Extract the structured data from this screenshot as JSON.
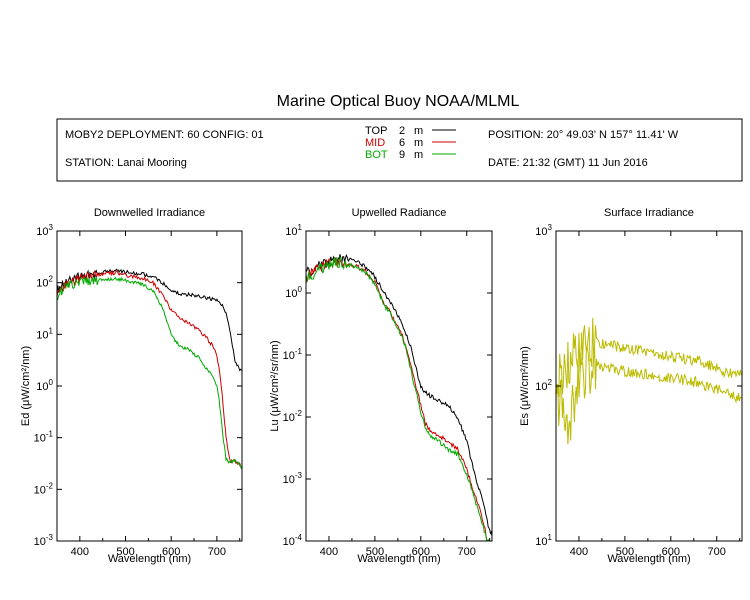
{
  "title": "Marine Optical Buoy NOAA/MLML",
  "info": {
    "deployment": "MOBY2 DEPLOYMENT: 60 CONFIG: 01",
    "station": "STATION: Lanai Mooring",
    "position": "POSITION: 20° 49.03' N   157° 11.41' W",
    "date": "DATE: 21:32 (GMT) 11 Jun 2016"
  },
  "legend": [
    {
      "name": "TOP",
      "depth": "2",
      "unit": "m",
      "color": "#000000"
    },
    {
      "name": "MID",
      "depth": "6",
      "unit": "m",
      "color": "#cc0000"
    },
    {
      "name": "BOT",
      "depth": "9",
      "unit": "m",
      "color": "#00aa00"
    }
  ],
  "chart_data": [
    {
      "type": "line",
      "title": "Downwelled Irradiance",
      "ylabel": "Ed  (μW/cm²/nm)",
      "xlabel": "Wavelength (nm)",
      "xlim": [
        350,
        755
      ],
      "ylim": [
        0.001,
        1000
      ],
      "yscale": "log",
      "xticks": [
        "400",
        "500",
        "600",
        "700"
      ],
      "yticks": [
        {
          "base": "10",
          "exp": "-3"
        },
        {
          "base": "10",
          "exp": "-2"
        },
        {
          "base": "10",
          "exp": "-1"
        },
        {
          "base": "10",
          "exp": "0"
        },
        {
          "base": "10",
          "exp": "1"
        },
        {
          "base": "10",
          "exp": "2"
        },
        {
          "base": "10",
          "exp": "3"
        }
      ],
      "series": [
        {
          "name": "TOP",
          "color": "#000000",
          "x": [
            350,
            360,
            380,
            400,
            420,
            440,
            460,
            480,
            500,
            520,
            540,
            560,
            580,
            600,
            620,
            640,
            660,
            680,
            700,
            710,
            720,
            730,
            740,
            750,
            755
          ],
          "y": [
            70,
            90,
            110,
            130,
            140,
            150,
            165,
            170,
            160,
            150,
            145,
            130,
            100,
            70,
            60,
            58,
            55,
            50,
            45,
            38,
            25,
            10,
            3,
            2,
            2
          ]
        },
        {
          "name": "MID",
          "color": "#cc0000",
          "x": [
            350,
            360,
            380,
            400,
            420,
            440,
            460,
            480,
            500,
            520,
            540,
            560,
            580,
            600,
            620,
            640,
            660,
            680,
            690,
            700,
            710,
            715,
            720,
            725,
            730,
            740,
            750,
            755
          ],
          "y": [
            60,
            80,
            100,
            120,
            130,
            140,
            150,
            155,
            140,
            130,
            120,
            100,
            60,
            30,
            20,
            16,
            12,
            8,
            6,
            4,
            1,
            0.3,
            0.1,
            0.05,
            0.035,
            0.035,
            0.03,
            0.025
          ]
        },
        {
          "name": "BOT",
          "color": "#00aa00",
          "x": [
            350,
            360,
            380,
            400,
            420,
            440,
            460,
            480,
            500,
            520,
            540,
            560,
            580,
            590,
            600,
            610,
            620,
            640,
            660,
            670,
            680,
            690,
            700,
            705,
            710,
            715,
            720,
            725,
            730,
            740,
            750,
            755
          ],
          "y": [
            55,
            70,
            90,
            100,
            105,
            110,
            115,
            120,
            110,
            100,
            90,
            70,
            35,
            18,
            10,
            7,
            6,
            5,
            3.5,
            2.5,
            2,
            1.6,
            1,
            0.5,
            0.2,
            0.08,
            0.04,
            0.035,
            0.035,
            0.035,
            0.03,
            0.025
          ]
        }
      ]
    },
    {
      "type": "line",
      "title": "Upwelled Radiance",
      "ylabel": "Lu  (μW/cm²/sr/nm)",
      "xlabel": "Wavelength (nm)",
      "xlim": [
        350,
        755
      ],
      "ylim": [
        0.0001,
        10
      ],
      "yscale": "log",
      "xticks": [
        "400",
        "500",
        "600",
        "700"
      ],
      "yticks": [
        {
          "base": "10",
          "exp": "-4"
        },
        {
          "base": "10",
          "exp": "-3"
        },
        {
          "base": "10",
          "exp": "-2"
        },
        {
          "base": "10",
          "exp": "-1"
        },
        {
          "base": "10",
          "exp": "0"
        },
        {
          "base": "10",
          "exp": "1"
        }
      ],
      "series": [
        {
          "name": "TOP",
          "color": "#000000",
          "x": [
            350,
            360,
            380,
            400,
            410,
            420,
            440,
            460,
            480,
            500,
            520,
            540,
            560,
            570,
            580,
            590,
            600,
            620,
            640,
            660,
            680,
            700,
            710,
            720,
            730,
            740,
            745,
            750,
            755
          ],
          "y": [
            2,
            2.3,
            2.8,
            3.3,
            3.6,
            3.8,
            3.5,
            3.2,
            2.6,
            1.8,
            1,
            0.6,
            0.3,
            0.2,
            0.12,
            0.06,
            0.03,
            0.022,
            0.018,
            0.015,
            0.01,
            0.004,
            0.002,
            0.001,
            0.0006,
            0.0003,
            0.0002,
            0.00015,
            0.00012
          ]
        },
        {
          "name": "MID",
          "color": "#cc0000",
          "x": [
            350,
            360,
            380,
            400,
            410,
            420,
            440,
            460,
            480,
            500,
            520,
            540,
            560,
            570,
            580,
            590,
            600,
            610,
            620,
            640,
            660,
            680,
            700,
            710,
            720,
            730,
            740,
            745,
            750
          ],
          "y": [
            1.8,
            2,
            2.5,
            3,
            3.2,
            3.3,
            3,
            2.7,
            2.2,
            1.5,
            0.7,
            0.4,
            0.2,
            0.12,
            0.06,
            0.03,
            0.015,
            0.008,
            0.006,
            0.005,
            0.004,
            0.003,
            0.0015,
            0.0008,
            0.0005,
            0.0003,
            0.00015,
            0.0001,
            0.0001
          ]
        },
        {
          "name": "BOT",
          "color": "#00aa00",
          "x": [
            350,
            360,
            380,
            400,
            410,
            420,
            440,
            460,
            480,
            500,
            520,
            540,
            560,
            570,
            580,
            590,
            600,
            610,
            620,
            640,
            660,
            680,
            700,
            710,
            720,
            730,
            740,
            745,
            750
          ],
          "y": [
            1.7,
            1.9,
            2.4,
            2.9,
            3.1,
            3.2,
            2.9,
            2.6,
            2.1,
            1.4,
            0.65,
            0.38,
            0.19,
            0.11,
            0.05,
            0.025,
            0.012,
            0.007,
            0.005,
            0.004,
            0.003,
            0.0025,
            0.0012,
            0.0007,
            0.0004,
            0.00025,
            0.00013,
            0.0001,
            0.0001
          ]
        }
      ]
    },
    {
      "type": "line",
      "title": "Surface Irradiance",
      "ylabel": "Es  (μW/cm²/nm)",
      "xlabel": "Wavelength (nm)",
      "xlim": [
        350,
        755
      ],
      "ylim": [
        10,
        1000
      ],
      "yscale": "log",
      "xticks": [
        "400",
        "500",
        "600",
        "700"
      ],
      "yticks": [
        {
          "base": "10",
          "exp": "1"
        },
        {
          "base": "10",
          "exp": "2"
        },
        {
          "base": "10",
          "exp": "3"
        }
      ],
      "series": [
        {
          "name": "",
          "color": "#bbbb00",
          "x": [
            350,
            360,
            380,
            400,
            420,
            440,
            460,
            480,
            500,
            520,
            540,
            560,
            580,
            600,
            620,
            640,
            660,
            680,
            700,
            720,
            740,
            755
          ],
          "y": [
            120,
            130,
            150,
            165,
            180,
            190,
            188,
            180,
            175,
            170,
            168,
            165,
            160,
            155,
            152,
            148,
            145,
            138,
            130,
            122,
            118,
            120
          ]
        },
        {
          "name": "",
          "color": "#bbbb00",
          "x": [
            350,
            360,
            380,
            400,
            420,
            440,
            460,
            480,
            500,
            520,
            540,
            560,
            580,
            600,
            620,
            640,
            660,
            680,
            700,
            720,
            740,
            755
          ],
          "y": [
            80,
            75,
            60,
            110,
            125,
            135,
            132,
            128,
            125,
            122,
            120,
            118,
            115,
            112,
            110,
            108,
            105,
            100,
            95,
            90,
            85,
            85
          ]
        }
      ]
    }
  ]
}
